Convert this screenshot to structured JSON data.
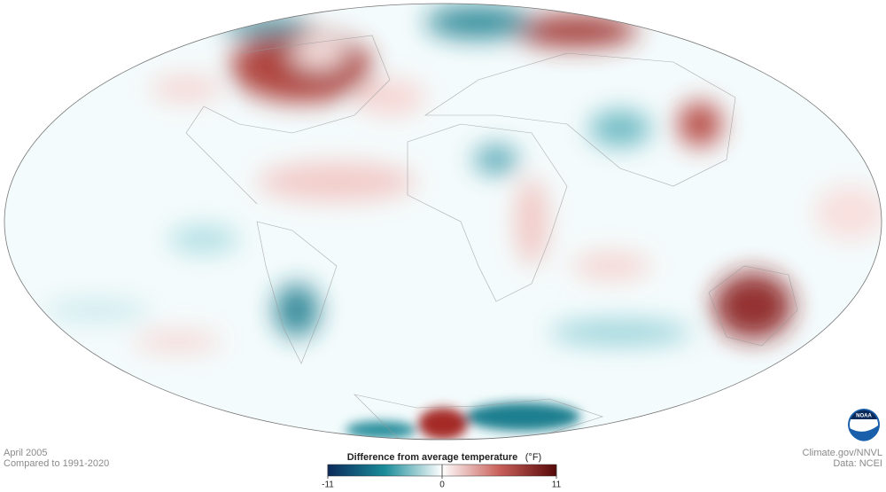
{
  "header": {
    "date": "April 2005",
    "baseline": "Compared to 1991-2020"
  },
  "legend": {
    "title": "Difference from average temperature",
    "unit": "(°F)",
    "lim": [
      -11,
      11
    ],
    "ticks": [
      -11,
      0,
      11
    ],
    "colors": [
      "#0b2a5c",
      "#1b8c99",
      "#ffffff",
      "#c9605a",
      "#560808"
    ]
  },
  "credits": {
    "source": "Climate.gov/NNVL",
    "data": "Data: NCEI"
  },
  "logo": "NOAA"
}
